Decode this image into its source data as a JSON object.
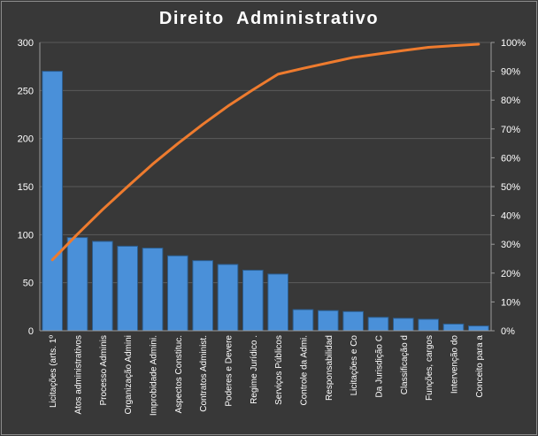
{
  "chart_data": {
    "type": "bar",
    "title": "Direito  Administrativo",
    "categories": [
      "Licitações (arts. 1º",
      "Atos administrativos",
      "Processo Adminis",
      "Organização Admini",
      "Improbidade Admini.",
      "Aspectos Constituc.",
      "Contratos Administ.",
      "Poderes e Devere",
      "Regime Jurídico .",
      "Serviços Públicos",
      "Controle da Admi.",
      "Responsabilidad",
      "Licitações e Co",
      "Da Jurisdição C",
      "Classificação d",
      "Funções, cargos",
      "Intervenção do",
      "Conceito para a"
    ],
    "series": [
      {
        "type": "bar",
        "values": [
          270,
          97,
          93,
          88,
          86,
          78,
          73,
          69,
          63,
          59,
          22,
          21,
          20,
          14,
          13,
          12,
          7,
          5
        ]
      },
      {
        "type": "line",
        "axis": "secondary",
        "values": [
          24.6,
          33.5,
          42.0,
          50.0,
          57.8,
          64.9,
          71.6,
          77.9,
          83.6,
          89.0,
          91.0,
          92.9,
          94.8,
          96.0,
          97.2,
          98.3,
          98.9,
          99.4
        ]
      }
    ],
    "ylim": [
      0,
      300
    ],
    "yticks": [
      0,
      50,
      100,
      150,
      200,
      250,
      300
    ],
    "y2lim": [
      0,
      100
    ],
    "y2ticks": [
      "0%",
      "10%",
      "20%",
      "30%",
      "40%",
      "50%",
      "60%",
      "70%",
      "80%",
      "90%",
      "100%"
    ],
    "grid": true,
    "legend": "none",
    "colors": {
      "bar": "#4a90d9",
      "bar_edge": "#2b5d8f",
      "line": "#ee7b2e",
      "background": "#383838",
      "grid": "#5a5a5a",
      "text": "#ffffff"
    }
  }
}
